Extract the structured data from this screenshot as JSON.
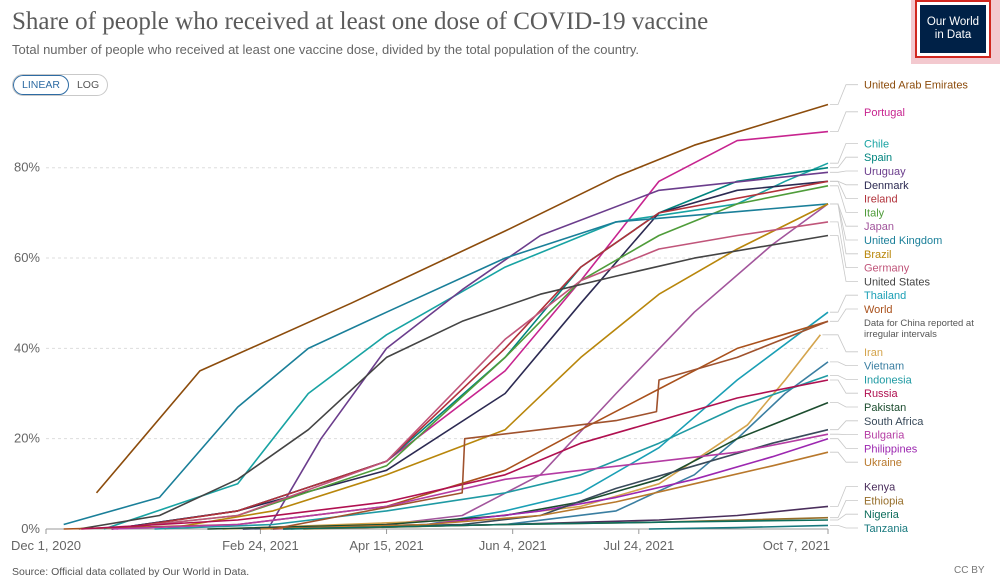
{
  "header": {
    "title": "Share of people who received at least one dose of COVID-19 vaccine",
    "subtitle": "Total number of people who received at least one vaccine dose, divided by the total population of the country.",
    "logo_line1": "Our World",
    "logo_line2": "in Data"
  },
  "controls": {
    "linear_label": "LINEAR",
    "log_label": "LOG",
    "active": "linear"
  },
  "footer": {
    "source": "Source: Official data collated by Our World in Data.",
    "license": "CC BY"
  },
  "chart_data": {
    "type": "line",
    "xlim": [
      "2020-12-01",
      "2021-10-07"
    ],
    "ylim": [
      0,
      95
    ],
    "x_ticks": [
      {
        "date": "2020-12-01",
        "label": "Dec 1, 2020"
      },
      {
        "date": "2021-02-24",
        "label": "Feb 24, 2021"
      },
      {
        "date": "2021-04-15",
        "label": "Apr 15, 2021"
      },
      {
        "date": "2021-06-04",
        "label": "Jun 4, 2021"
      },
      {
        "date": "2021-07-24",
        "label": "Jul 24, 2021"
      },
      {
        "date": "2021-10-07",
        "label": "Oct 7, 2021"
      }
    ],
    "y_ticks": [
      {
        "value": 0,
        "label": "0%"
      },
      {
        "value": 20,
        "label": "20%"
      },
      {
        "value": 40,
        "label": "40%"
      },
      {
        "value": 60,
        "label": "60%"
      },
      {
        "value": 80,
        "label": "80%"
      }
    ],
    "grid": "horizontal dashed",
    "legend": "right, labels at line ends",
    "annotation": "Data for China reported at irregular intervals",
    "series": [
      {
        "name": "United Arab Emirates",
        "color": "#8c4c0c",
        "x": [
          "2020-12-21",
          "2021-01-31",
          "2021-04-01",
          "2021-06-01",
          "2021-07-15",
          "2021-08-15",
          "2021-10-07"
        ],
        "values": [
          8,
          35,
          50,
          66,
          78,
          85,
          94
        ]
      },
      {
        "name": "Portugal",
        "color": "#c7248f",
        "x": [
          "2020-12-27",
          "2021-02-15",
          "2021-04-15",
          "2021-06-01",
          "2021-07-01",
          "2021-08-01",
          "2021-09-01",
          "2021-10-07"
        ],
        "values": [
          0,
          4,
          15,
          35,
          55,
          77,
          86,
          88
        ]
      },
      {
        "name": "Chile",
        "color": "#18a3a3",
        "x": [
          "2020-12-24",
          "2021-02-15",
          "2021-03-15",
          "2021-04-15",
          "2021-06-01",
          "2021-07-15",
          "2021-09-01",
          "2021-09-20",
          "2021-10-07"
        ],
        "values": [
          0,
          10,
          30,
          43,
          58,
          68,
          72,
          77,
          81
        ]
      },
      {
        "name": "Spain",
        "color": "#00847e",
        "x": [
          "2020-12-27",
          "2021-02-15",
          "2021-04-15",
          "2021-06-01",
          "2021-07-01",
          "2021-08-01",
          "2021-09-01",
          "2021-10-07"
        ],
        "values": [
          0,
          4,
          15,
          38,
          58,
          70,
          77,
          80
        ]
      },
      {
        "name": "Uruguay",
        "color": "#6b3d8c",
        "x": [
          "2021-02-27",
          "2021-03-20",
          "2021-04-15",
          "2021-05-15",
          "2021-06-15",
          "2021-08-01",
          "2021-10-07"
        ],
        "values": [
          0,
          20,
          40,
          53,
          65,
          75,
          79
        ]
      },
      {
        "name": "Denmark",
        "color": "#2c2a52",
        "x": [
          "2020-12-27",
          "2021-02-15",
          "2021-04-15",
          "2021-06-01",
          "2021-07-01",
          "2021-08-01",
          "2021-09-01",
          "2021-10-07"
        ],
        "values": [
          0,
          4,
          13,
          30,
          50,
          70,
          75,
          77
        ]
      },
      {
        "name": "Ireland",
        "color": "#b1313a",
        "x": [
          "2020-12-29",
          "2021-02-15",
          "2021-04-15",
          "2021-06-01",
          "2021-07-01",
          "2021-08-01",
          "2021-10-07"
        ],
        "values": [
          0,
          4,
          15,
          40,
          58,
          70,
          77
        ]
      },
      {
        "name": "Italy",
        "color": "#4f9c3a",
        "x": [
          "2020-12-27",
          "2021-02-15",
          "2021-04-15",
          "2021-06-01",
          "2021-07-01",
          "2021-08-01",
          "2021-09-01",
          "2021-10-07"
        ],
        "values": [
          0,
          3,
          14,
          38,
          55,
          65,
          72,
          76
        ]
      },
      {
        "name": "Japan",
        "color": "#a2559c",
        "x": [
          "2021-02-17",
          "2021-04-15",
          "2021-05-15",
          "2021-06-15",
          "2021-07-15",
          "2021-08-15",
          "2021-09-15",
          "2021-10-07"
        ],
        "values": [
          0,
          1,
          3,
          12,
          30,
          48,
          63,
          72
        ]
      },
      {
        "name": "United Kingdom",
        "color": "#1a7f99",
        "x": [
          "2020-12-08",
          "2021-01-15",
          "2021-02-15",
          "2021-03-15",
          "2021-04-15",
          "2021-06-01",
          "2021-07-15",
          "2021-10-07"
        ],
        "values": [
          1,
          7,
          27,
          40,
          48,
          60,
          68,
          72
        ]
      },
      {
        "name": "Brazil",
        "color": "#b8860b",
        "x": [
          "2021-01-17",
          "2021-03-01",
          "2021-04-15",
          "2021-06-01",
          "2021-07-01",
          "2021-08-01",
          "2021-09-01",
          "2021-10-07"
        ],
        "values": [
          0,
          4,
          12,
          22,
          38,
          52,
          62,
          72
        ]
      },
      {
        "name": "Germany",
        "color": "#c0557a",
        "x": [
          "2020-12-27",
          "2021-02-15",
          "2021-04-15",
          "2021-06-01",
          "2021-07-01",
          "2021-08-01",
          "2021-09-01",
          "2021-10-07"
        ],
        "values": [
          0,
          3,
          15,
          42,
          55,
          62,
          65,
          68
        ]
      },
      {
        "name": "United States",
        "color": "#444444",
        "x": [
          "2020-12-14",
          "2021-01-15",
          "2021-02-15",
          "2021-03-15",
          "2021-04-15",
          "2021-05-15",
          "2021-06-15",
          "2021-07-15",
          "2021-08-15",
          "2021-10-07"
        ],
        "values": [
          0,
          3,
          11,
          22,
          38,
          46,
          52,
          56,
          60,
          65
        ]
      },
      {
        "name": "Thailand",
        "color": "#1a9fb5",
        "x": [
          "2021-02-28",
          "2021-05-01",
          "2021-06-01",
          "2021-07-01",
          "2021-08-01",
          "2021-09-01",
          "2021-10-07"
        ],
        "values": [
          0,
          1,
          4,
          8,
          18,
          33,
          48
        ]
      },
      {
        "name": "World",
        "color": "#a9511c",
        "x": [
          "2020-12-08",
          "2021-02-15",
          "2021-04-15",
          "2021-06-01",
          "2021-07-01",
          "2021-08-01",
          "2021-09-01",
          "2021-10-07"
        ],
        "values": [
          0,
          1,
          5,
          13,
          22,
          31,
          40,
          46
        ]
      },
      {
        "name": "Iran",
        "color": "#d4a44c",
        "x": [
          "2021-02-09",
          "2021-05-15",
          "2021-07-01",
          "2021-08-01",
          "2021-08-20",
          "2021-09-05",
          "2021-09-20",
          "2021-10-04"
        ],
        "values": [
          0,
          2,
          5,
          10,
          17,
          23,
          33,
          43
        ]
      },
      {
        "name": "Vietnam",
        "color": "#3a7ea1",
        "x": [
          "2021-03-08",
          "2021-06-01",
          "2021-07-15",
          "2021-08-15",
          "2021-09-01",
          "2021-09-20",
          "2021-10-07"
        ],
        "values": [
          0,
          1,
          4,
          12,
          20,
          30,
          37
        ]
      },
      {
        "name": "Indonesia",
        "color": "#1f9aa3",
        "x": [
          "2021-01-13",
          "2021-03-01",
          "2021-04-15",
          "2021-06-01",
          "2021-07-01",
          "2021-08-01",
          "2021-09-01",
          "2021-10-07"
        ],
        "values": [
          0,
          1,
          4,
          8,
          12,
          19,
          27,
          34
        ]
      },
      {
        "name": "Russia",
        "color": "#b01050",
        "x": [
          "2020-12-15",
          "2021-02-15",
          "2021-04-15",
          "2021-06-01",
          "2021-07-01",
          "2021-08-01",
          "2021-09-01",
          "2021-10-07"
        ],
        "values": [
          0,
          2,
          6,
          12,
          19,
          24,
          29,
          33
        ]
      },
      {
        "name": "Pakistan",
        "color": "#1c4d2f",
        "x": [
          "2021-02-03",
          "2021-04-15",
          "2021-06-01",
          "2021-07-01",
          "2021-08-01",
          "2021-09-01",
          "2021-10-07"
        ],
        "values": [
          0,
          1,
          3,
          6,
          11,
          20,
          28
        ]
      },
      {
        "name": "Philippines",
        "color": "#9c27b0",
        "x": [
          "2021-03-01",
          "2021-05-01",
          "2021-06-15",
          "2021-07-15",
          "2021-08-15",
          "2021-09-15",
          "2021-10-07"
        ],
        "values": [
          0,
          1,
          4,
          7,
          11,
          16,
          20
        ]
      },
      {
        "name": "South Africa",
        "color": "#394a5a",
        "x": [
          "2021-02-17",
          "2021-05-15",
          "2021-06-15",
          "2021-07-15",
          "2021-08-15",
          "2021-09-15",
          "2021-10-07"
        ],
        "values": [
          0,
          1,
          3,
          9,
          14,
          19,
          22
        ]
      },
      {
        "name": "Bulgaria",
        "color": "#b43ca3",
        "x": [
          "2020-12-27",
          "2021-02-15",
          "2021-04-15",
          "2021-06-01",
          "2021-07-01",
          "2021-08-01",
          "2021-09-01",
          "2021-10-07"
        ],
        "values": [
          0,
          1,
          5,
          11,
          13,
          15,
          17,
          21
        ]
      },
      {
        "name": "Ukraine",
        "color": "#b8782c",
        "x": [
          "2021-02-24",
          "2021-05-01",
          "2021-06-15",
          "2021-07-15",
          "2021-08-15",
          "2021-09-15",
          "2021-10-07"
        ],
        "values": [
          0,
          1,
          3,
          6,
          10,
          14,
          17
        ]
      },
      {
        "name": "Kenya",
        "color": "#4a2e5c",
        "x": [
          "2021-03-05",
          "2021-06-01",
          "2021-08-01",
          "2021-09-01",
          "2021-10-07"
        ],
        "values": [
          0,
          1,
          2,
          3,
          5
        ]
      },
      {
        "name": "Ethiopia",
        "color": "#966e2a",
        "x": [
          "2021-03-13",
          "2021-06-01",
          "2021-08-01",
          "2021-10-07"
        ],
        "values": [
          0,
          1,
          1.5,
          2.5
        ]
      },
      {
        "name": "Nigeria",
        "color": "#0d6d5c",
        "x": [
          "2021-03-05",
          "2021-06-01",
          "2021-08-01",
          "2021-10-07"
        ],
        "values": [
          0,
          1,
          1.5,
          2
        ]
      },
      {
        "name": "Tanzania",
        "color": "#18797e",
        "x": [
          "2021-07-28",
          "2021-09-01",
          "2021-10-07"
        ],
        "values": [
          0,
          0.3,
          0.8
        ]
      },
      {
        "name": "China",
        "color": "#a0522d",
        "x": [
          "2021-03-01",
          "2021-05-15",
          "2021-05-16",
          "2021-06-15",
          "2021-07-15",
          "2021-07-31",
          "2021-08-01",
          "2021-09-01",
          "2021-10-07"
        ],
        "values": [
          0,
          8,
          20,
          22,
          24,
          26,
          33,
          38,
          46
        ]
      }
    ]
  }
}
